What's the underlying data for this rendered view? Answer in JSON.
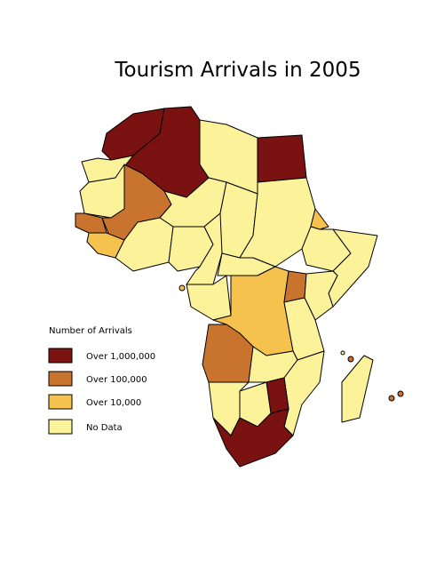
{
  "title": "Tourism Arrivals in 2005",
  "legend": {
    "title": "Number of Arrivals",
    "items": [
      {
        "label": "Over 1,000,000",
        "color": "#7a1212"
      },
      {
        "label": "Over 100,000",
        "color": "#c8742f"
      },
      {
        "label": "Over 10,000",
        "color": "#f4c24d"
      },
      {
        "label": "No Data",
        "color": "#fbf29a"
      }
    ]
  }
}
